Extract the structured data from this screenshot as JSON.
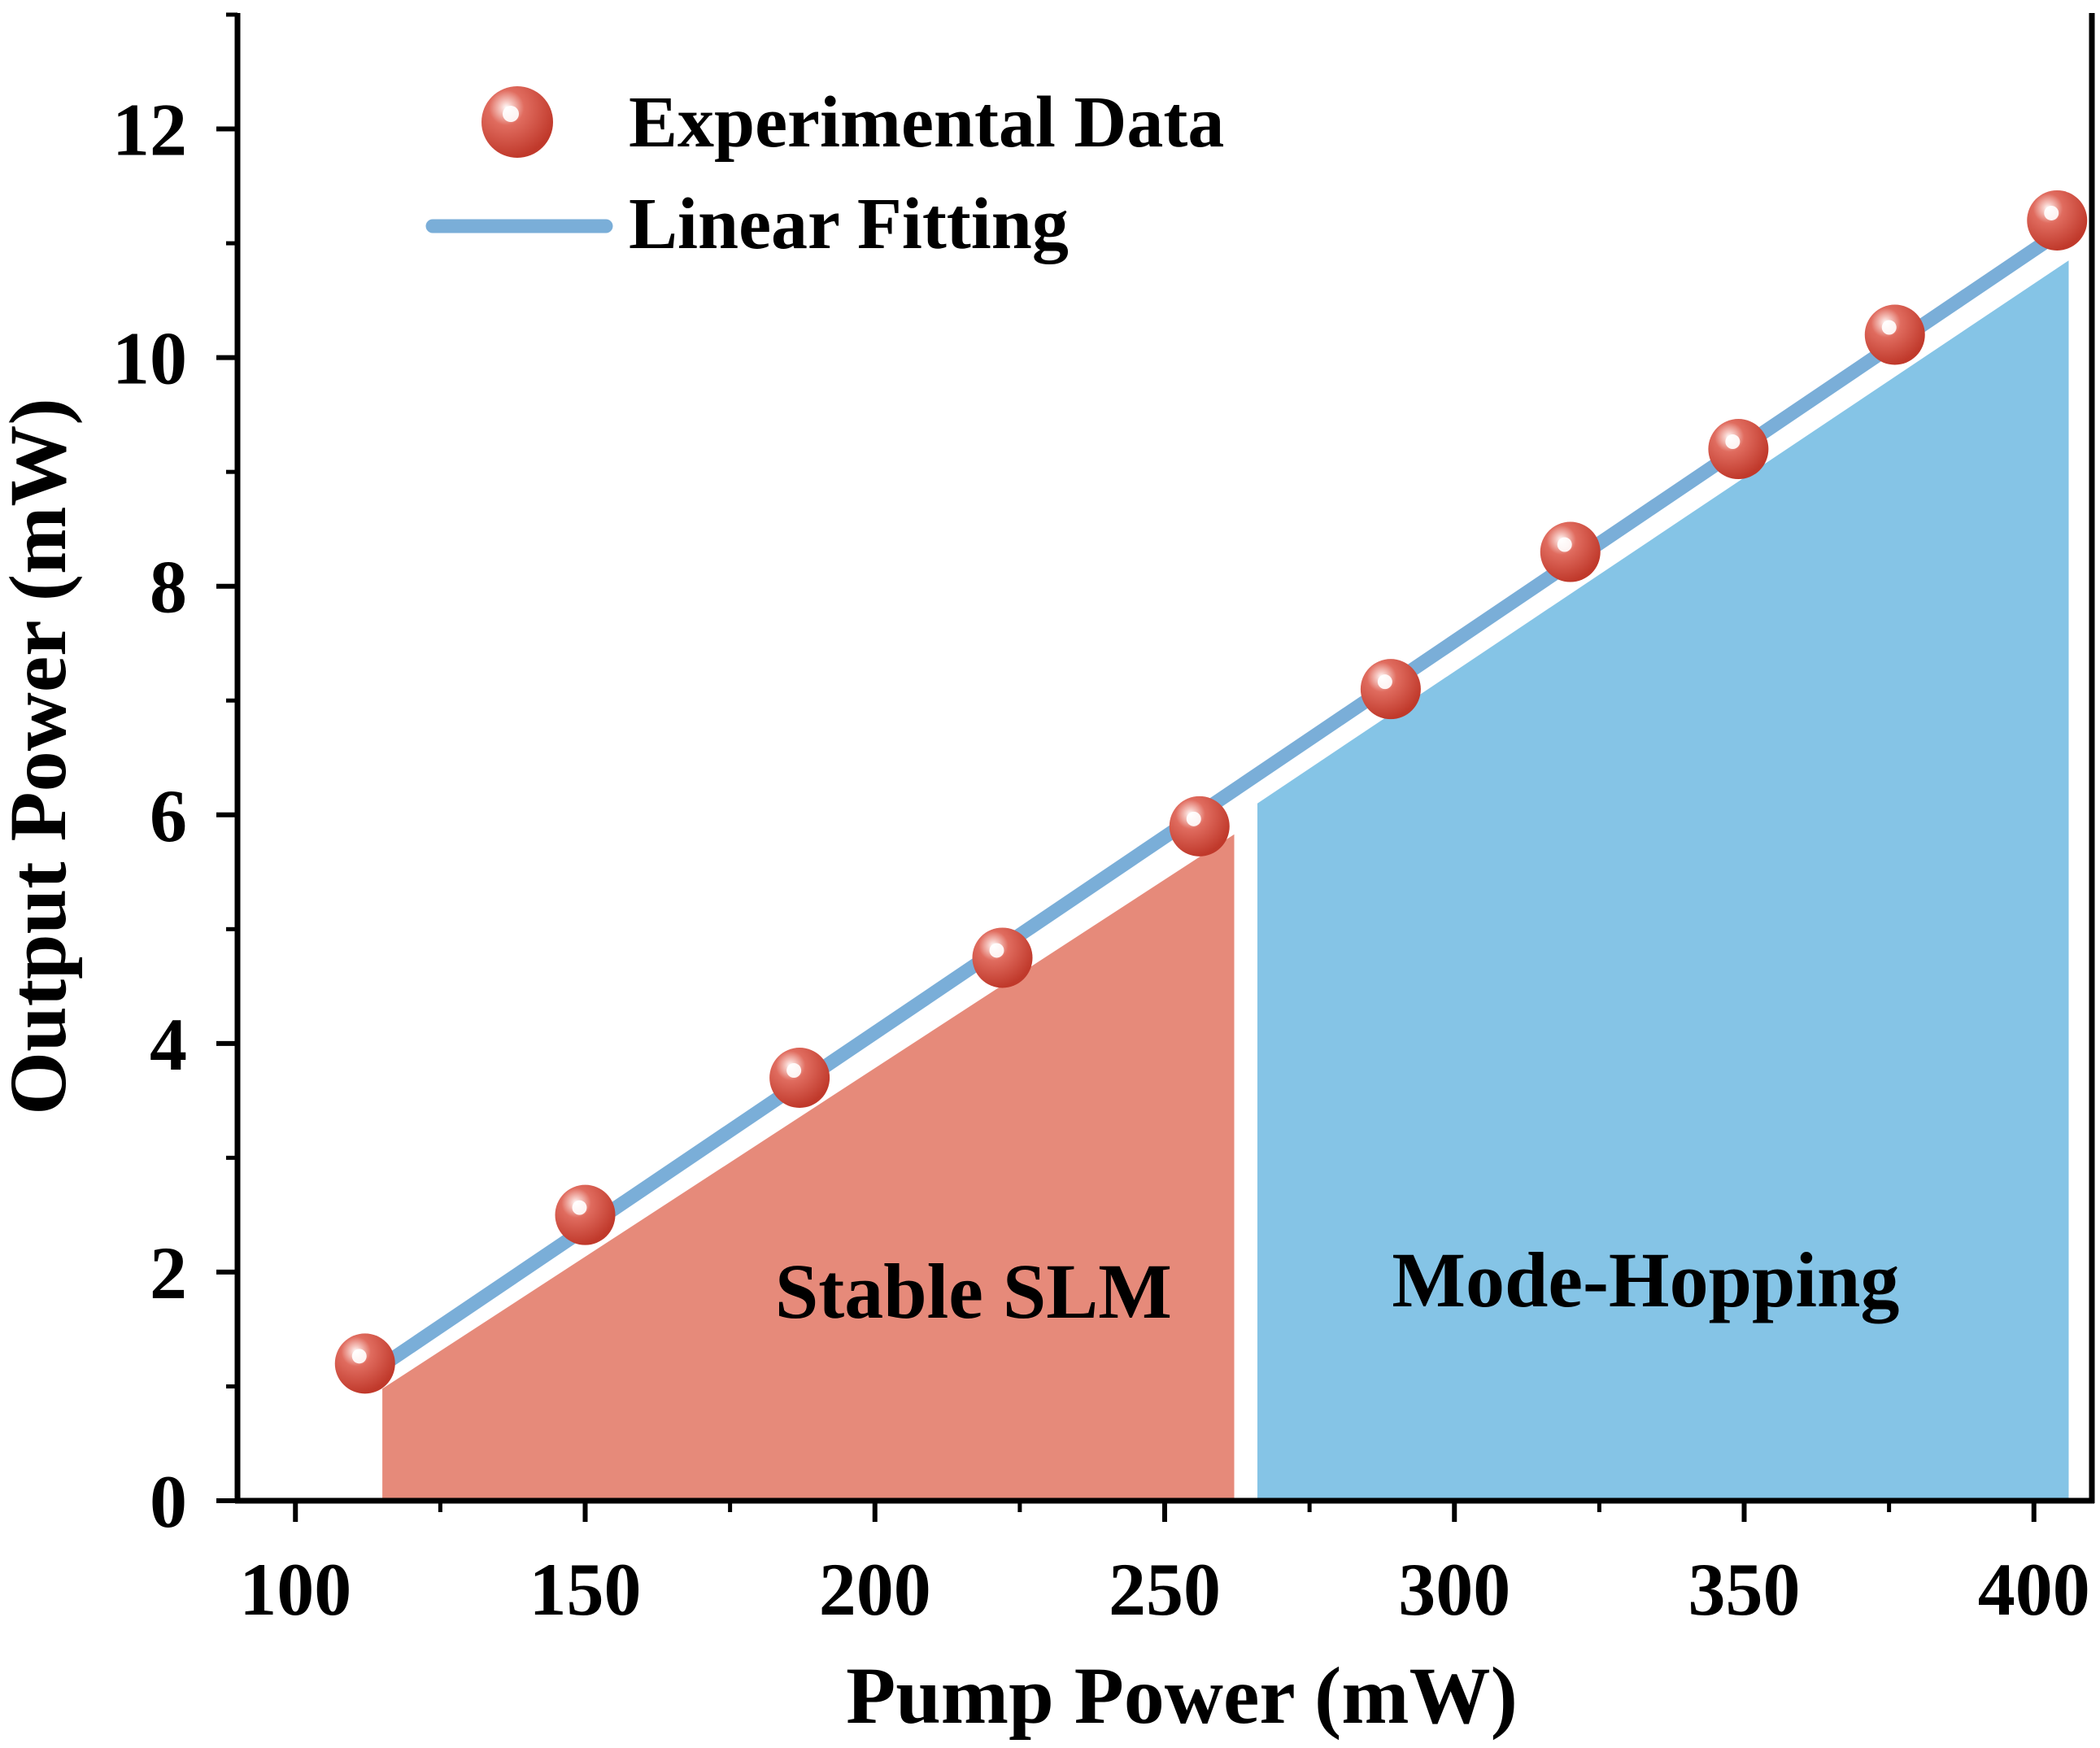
{
  "chart_data": {
    "type": "scatter",
    "xlabel": "Pump Power (mW)",
    "ylabel": "Output Power (mW)",
    "xlim": [
      90,
      410
    ],
    "ylim": [
      0,
      13
    ],
    "xticks": [
      100,
      150,
      200,
      250,
      300,
      350,
      400
    ],
    "yticks": [
      0,
      2,
      4,
      6,
      8,
      10,
      12
    ],
    "grid": false,
    "legend_position": "top-left",
    "series": [
      {
        "name": "Experimental Data",
        "kind": "scatter",
        "color": "#d9534a",
        "x": [
          112,
          150,
          187,
          222,
          256,
          289,
          320,
          349,
          376,
          404
        ],
        "y": [
          1.2,
          2.5,
          3.7,
          4.75,
          5.9,
          7.1,
          8.3,
          9.2,
          10.2,
          11.2
        ]
      },
      {
        "name": "Linear Fitting",
        "kind": "line",
        "color": "#7aaed8",
        "x": [
          112,
          404
        ],
        "y": [
          1.08,
          11.08
        ]
      }
    ],
    "regions": [
      {
        "label": "Stable SLM",
        "color": "#e68a7a",
        "polygon": [
          [
            115,
            0
          ],
          [
            115,
            0.98
          ],
          [
            262,
            5.83
          ],
          [
            262,
            0
          ]
        ],
        "label_at": [
          217,
          1.6
        ]
      },
      {
        "label": "Mode-Hopping",
        "color": "#85c4e6",
        "polygon": [
          [
            266,
            0
          ],
          [
            266,
            6.1
          ],
          [
            406,
            10.85
          ],
          [
            406,
            0
          ]
        ],
        "label_at": [
          333,
          1.7
        ]
      }
    ]
  }
}
